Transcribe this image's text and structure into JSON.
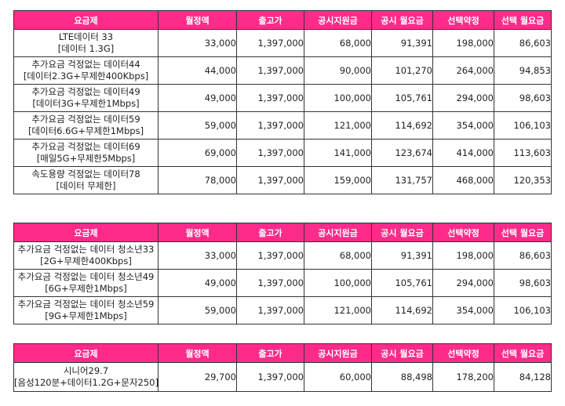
{
  "headers": [
    "요금제",
    "월정액",
    "출고가",
    "공시지원금",
    "공시 월요금",
    "선택약정",
    "선택 월요금"
  ],
  "tables": [
    {
      "rows": [
        {
          "name": [
            "LTE데이터 33",
            "[데이터 1.3G]"
          ],
          "values": [
            "33,000",
            "1,397,000",
            "68,000",
            "91,391",
            "198,000",
            "86,603"
          ]
        },
        {
          "name": [
            "추가요금 걱정없는 데이터44",
            "[데이터2.3G+무제한400Kbps]"
          ],
          "values": [
            "44,000",
            "1,397,000",
            "90,000",
            "101,270",
            "264,000",
            "94,853"
          ]
        },
        {
          "name": [
            "추가요금 걱정없는 데이터49",
            "[데이터3G+무제한1Mbps]"
          ],
          "values": [
            "49,000",
            "1,397,000",
            "100,000",
            "105,761",
            "294,000",
            "98,603"
          ]
        },
        {
          "name": [
            "추가요금 걱정없는 데이터59",
            "[데이터6.6G+무제한1Mbps]"
          ],
          "values": [
            "59,000",
            "1,397,000",
            "121,000",
            "114,692",
            "354,000",
            "106,103"
          ]
        },
        {
          "name": [
            "추가요금 걱정없는 데이터69",
            "[매일5G+무제한5Mbps]"
          ],
          "values": [
            "69,000",
            "1,397,000",
            "141,000",
            "123,674",
            "414,000",
            "113,603"
          ]
        },
        {
          "name": [
            "속도용량 걱정없는 데이터78",
            "[데이터 무제한]"
          ],
          "values": [
            "78,000",
            "1,397,000",
            "159,000",
            "131,757",
            "468,000",
            "120,353"
          ]
        }
      ]
    },
    {
      "rows": [
        {
          "name": [
            "추가요금 걱정없는 데이터 청소년33",
            "[2G+무제한400Kbps]"
          ],
          "values": [
            "33,000",
            "1,397,000",
            "68,000",
            "91,391",
            "198,000",
            "86,603"
          ]
        },
        {
          "name": [
            "추가요금 걱정없는 데이터 청소년49",
            "[6G+무제한1Mbps]"
          ],
          "values": [
            "49,000",
            "1,397,000",
            "100,000",
            "105,761",
            "294,000",
            "98,603"
          ]
        },
        {
          "name": [
            "추가요금 걱정없는 데이터 청소년59",
            "[9G+무제한1Mbps]"
          ],
          "values": [
            "59,000",
            "1,397,000",
            "121,000",
            "114,692",
            "354,000",
            "106,103"
          ]
        }
      ]
    },
    {
      "rows": [
        {
          "name": [
            "시니어29.7",
            "[음성120분+데이터1.2G+문자250]"
          ],
          "values": [
            "29,700",
            "1,397,000",
            "60,000",
            "88,498",
            "178,200",
            "84,128"
          ]
        }
      ]
    }
  ],
  "colors": {
    "header_bg": "#ff2b8a",
    "header_text": "#ffffff",
    "monthly_fee_text": "#1f5ca6"
  }
}
